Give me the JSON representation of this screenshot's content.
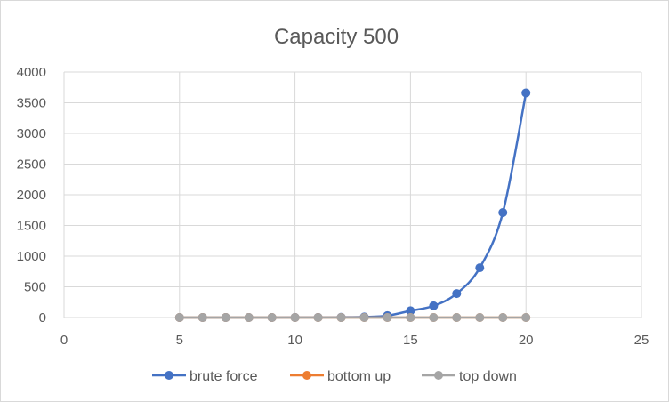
{
  "chart_data": {
    "type": "scatter",
    "title": "Capacity 500",
    "xlabel": "",
    "ylabel": "",
    "xlim": [
      0,
      25
    ],
    "ylim": [
      0,
      4000
    ],
    "x_ticks": [
      "0",
      "5",
      "10",
      "15",
      "20",
      "25"
    ],
    "y_ticks": [
      "0",
      "500",
      "1000",
      "1500",
      "2000",
      "2500",
      "3000",
      "3500",
      "4000"
    ],
    "grid": true,
    "smooth_lines": true,
    "legend_position": "bottom",
    "series": [
      {
        "name": "brute force",
        "color": "#4472c4",
        "points": [
          [
            5,
            0
          ],
          [
            6,
            0
          ],
          [
            7,
            0
          ],
          [
            8,
            0
          ],
          [
            9,
            0
          ],
          [
            10,
            1
          ],
          [
            11,
            2
          ],
          [
            12,
            4
          ],
          [
            13,
            9
          ],
          [
            14,
            30
          ],
          [
            15,
            110
          ],
          [
            16,
            190
          ],
          [
            17,
            390
          ],
          [
            18,
            810
          ],
          [
            19,
            1710
          ],
          [
            20,
            3660
          ]
        ]
      },
      {
        "name": "bottom up",
        "color": "#ed7d31",
        "points": [
          [
            5,
            0
          ],
          [
            6,
            0
          ],
          [
            7,
            0
          ],
          [
            8,
            0
          ],
          [
            9,
            0
          ],
          [
            10,
            0
          ],
          [
            11,
            0
          ],
          [
            12,
            0
          ],
          [
            13,
            0
          ],
          [
            14,
            0
          ],
          [
            15,
            0
          ],
          [
            16,
            0
          ],
          [
            17,
            0
          ],
          [
            18,
            0
          ],
          [
            19,
            0
          ],
          [
            20,
            0
          ]
        ]
      },
      {
        "name": "top down",
        "color": "#a5a5a5",
        "points": [
          [
            5,
            0
          ],
          [
            6,
            0
          ],
          [
            7,
            0
          ],
          [
            8,
            0
          ],
          [
            9,
            0
          ],
          [
            10,
            0
          ],
          [
            11,
            0
          ],
          [
            12,
            0
          ],
          [
            13,
            0
          ],
          [
            14,
            0
          ],
          [
            15,
            0
          ],
          [
            16,
            0
          ],
          [
            17,
            0
          ],
          [
            18,
            0
          ],
          [
            19,
            0
          ],
          [
            20,
            0
          ]
        ]
      }
    ]
  }
}
